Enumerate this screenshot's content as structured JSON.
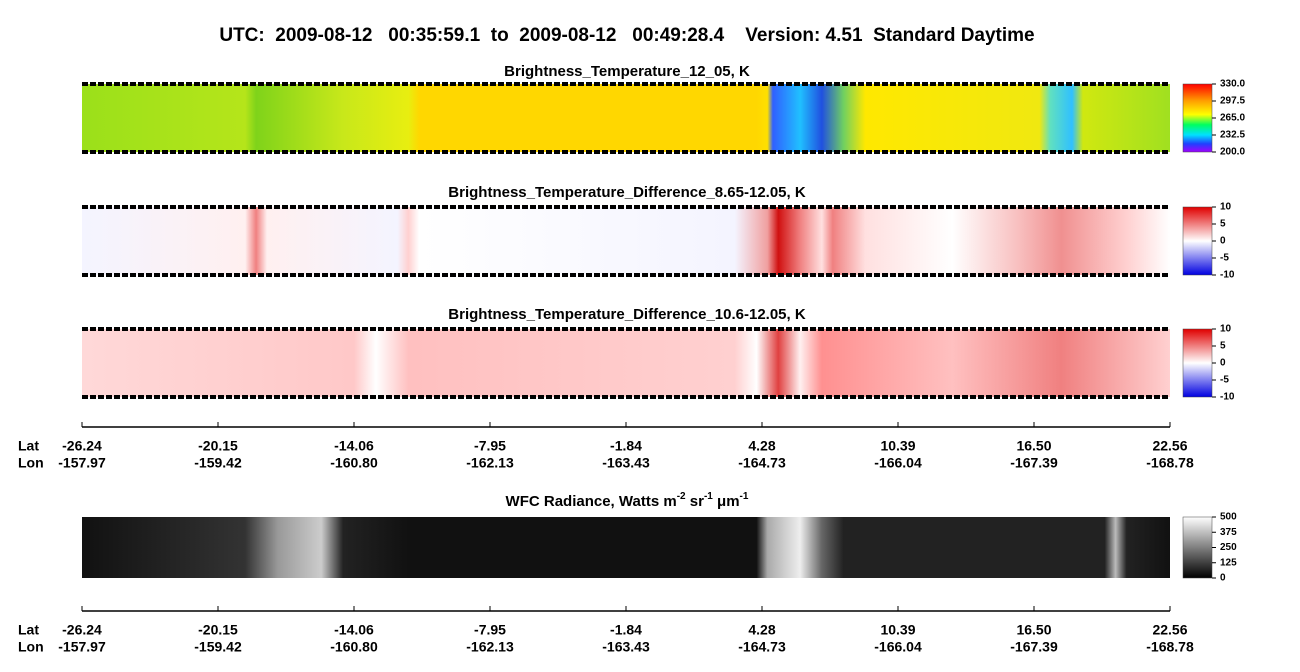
{
  "title": "UTC:  2009-08-12   00:35:59.1  to  2009-08-12   00:49:28.4    Version: 4.51  Standard Daytime",
  "panels": [
    {
      "title": "Brightness_Temperature_12_05, K",
      "colorbar_ticks": [
        {
          "value": 330,
          "label": "330.0"
        },
        {
          "value": 297.5,
          "label": "297.5"
        },
        {
          "value": 265,
          "label": "265.0"
        },
        {
          "value": 232.5,
          "label": "232.5"
        },
        {
          "value": 200,
          "label": "200.0"
        }
      ]
    },
    {
      "title": "Brightness_Temperature_Difference_8.65-12.05, K",
      "colorbar_ticks": [
        10,
        5,
        0,
        -5,
        -10
      ]
    },
    {
      "title": "Brightness_Temperature_Difference_10.6-12.05, K",
      "colorbar_ticks": [
        10,
        5,
        0,
        -5,
        -10
      ]
    },
    {
      "title_parts": [
        "WFC Radiance, Watts m",
        "-2",
        " sr",
        "-1",
        " μm",
        "-1"
      ],
      "colorbar_ticks": [
        500,
        375,
        250,
        125,
        0
      ]
    }
  ],
  "axes": [
    {
      "lat_label": "Lat",
      "lon_label": "Lon",
      "lat_ticks": [
        -26.24,
        -20.15,
        -14.06,
        -7.95,
        -1.84,
        4.28,
        10.39,
        {
          "value": 16.5,
          "label": "16.50"
        },
        22.56
      ],
      "lon_ticks": [
        -157.97,
        -159.42,
        {
          "value": -160.8,
          "label": "-160.80"
        },
        -162.13,
        -163.43,
        -164.73,
        -166.04,
        -167.39,
        -168.78
      ]
    },
    {
      "lat_label": "Lat",
      "lon_label": "Lon",
      "lat_ticks": [
        -26.24,
        -20.15,
        -14.06,
        -7.95,
        -1.84,
        4.28,
        10.39,
        {
          "value": 16.5,
          "label": "16.50"
        },
        22.56
      ],
      "lon_ticks": [
        -157.97,
        -159.42,
        {
          "value": -160.8,
          "label": "-160.80"
        },
        -162.13,
        -163.43,
        -164.73,
        -166.04,
        -167.39,
        -168.78
      ]
    }
  ]
}
